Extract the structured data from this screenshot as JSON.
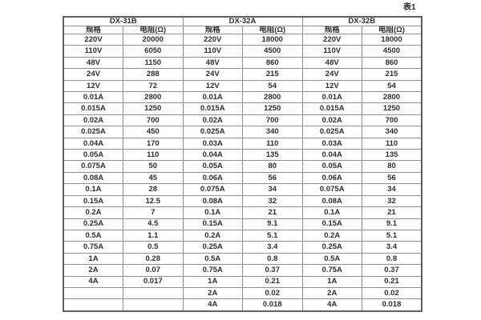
{
  "caption": "表1",
  "table": {
    "groups": [
      {
        "name": "DX-31B",
        "columns": [
          "规格",
          "电阻(Ω)"
        ]
      },
      {
        "name": "DX-32A",
        "columns": [
          "规格",
          "电阻(Ω)"
        ]
      },
      {
        "name": "DX-32B",
        "columns": [
          "规格",
          "电阻(Ω)"
        ]
      }
    ],
    "rows": [
      [
        "220V",
        "20000",
        "220V",
        "18000",
        "220V",
        "18000"
      ],
      [
        "110V",
        "6050",
        "110V",
        "4500",
        "110V",
        "4500"
      ],
      [
        "48V",
        "1150",
        "48V",
        "860",
        "48V",
        "860"
      ],
      [
        "24V",
        "288",
        "24V",
        "215",
        "24V",
        "215"
      ],
      [
        "12V",
        "72",
        "12V",
        "54",
        "12V",
        "54"
      ],
      [
        "0.01A",
        "2800",
        "0.01A",
        "2800",
        "0.01A",
        "2800"
      ],
      [
        "0.015A",
        "1250",
        "0.015A",
        "1250",
        "0.015A",
        "1250"
      ],
      [
        "0.02A",
        "700",
        "0.02A",
        "700",
        "0.02A",
        "700"
      ],
      [
        "0.025A",
        "450",
        "0.025A",
        "340",
        "0.025A",
        "340"
      ],
      [
        "0.04A",
        "170",
        "0.03A",
        "110",
        "0.03A",
        "110"
      ],
      [
        "0.05A",
        "110",
        "0.04A",
        "135",
        "0.04A",
        "135"
      ],
      [
        "0.075A",
        "50",
        "0.05A",
        "80",
        "0.05A",
        "80"
      ],
      [
        "0.08A",
        "45",
        "0.06A",
        "56",
        "0.06A",
        "56"
      ],
      [
        "0.1A",
        "28",
        "0.075A",
        "34",
        "0.075A",
        "34"
      ],
      [
        "0.15A",
        "12.5",
        "0.08A",
        "32",
        "0.08A",
        "32"
      ],
      [
        "0.2A",
        "7",
        "0.1A",
        "21",
        "0.1A",
        "21"
      ],
      [
        "0.25A",
        "4.5",
        "0.15A",
        "9.1",
        "0.15A",
        "9.1"
      ],
      [
        "0.5A",
        "1.1",
        "0.2A",
        "5.1",
        "0.2A",
        "5.1"
      ],
      [
        "0.75A",
        "0.5",
        "0.25A",
        "3.4",
        "0.25A",
        "3.4"
      ],
      [
        "1A",
        "0.28",
        "0.5A",
        "0.8",
        "0.5A",
        "0.8"
      ],
      [
        "2A",
        "0.07",
        "0.75A",
        "0.37",
        "0.75A",
        "0.37"
      ],
      [
        "4A",
        "0.017",
        "1A",
        "0.21",
        "1A",
        "0.21"
      ],
      [
        "",
        "",
        "2A",
        "0.02",
        "2A",
        "0.02"
      ],
      [
        "",
        "",
        "4A",
        "0.018",
        "4A",
        "0.018"
      ]
    ]
  }
}
